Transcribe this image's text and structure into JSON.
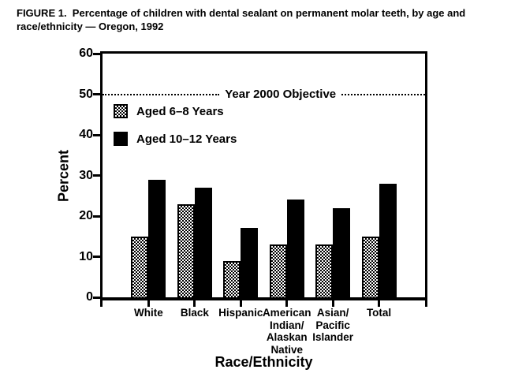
{
  "figure": {
    "title_lines": [
      "FIGURE 1.  Percentage of children with dental sealant on permanent molar teeth, by age and",
      "race/ethnicity — Oregon, 1992"
    ]
  },
  "chart_data": {
    "type": "bar",
    "title": "FIGURE 1. Percentage of children with dental sealant on permanent molar teeth, by age and race/ethnicity — Oregon, 1992",
    "categories": [
      "White",
      "Black",
      "Hispanic",
      "American Indian/Alaskan Native",
      "Asian/Pacific Islander",
      "Total"
    ],
    "category_label_lines": [
      [
        "White"
      ],
      [
        "Black"
      ],
      [
        "Hispanic"
      ],
      [
        "American",
        "Indian/",
        "Alaskan",
        "Native"
      ],
      [
        "Asian/",
        "Pacific",
        "Islander"
      ],
      [
        "Total"
      ]
    ],
    "series": [
      {
        "name": "Aged 6–8 Years",
        "style": "pattern",
        "values": [
          15,
          23,
          9,
          13,
          13,
          15
        ]
      },
      {
        "name": "Aged 10–12 Years",
        "style": "solid",
        "values": [
          29,
          27,
          17,
          24,
          22,
          28
        ]
      }
    ],
    "xlabel": "Race/Ethnicity",
    "ylabel": "Percent",
    "ylim": [
      0,
      60
    ],
    "yticks": [
      0,
      10,
      20,
      30,
      40,
      50,
      60
    ],
    "reference_line": {
      "value": 50,
      "label": "Year 2000 Objective",
      "style": "dotted"
    },
    "legend_position": "upper-left-inside",
    "grid": false,
    "colors": {
      "solid_bar": "#000000",
      "pattern_bar_fg": "#000000",
      "background": "#ffffff",
      "text": "#000000"
    }
  }
}
